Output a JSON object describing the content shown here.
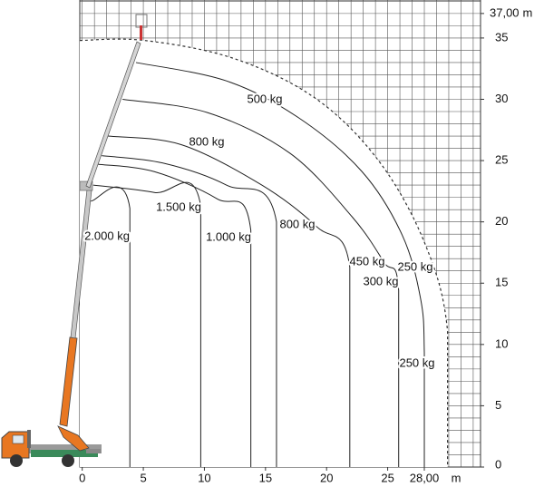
{
  "chart_data": {
    "type": "working-range",
    "xlim": [
      -0.2,
      32.6
    ],
    "ylim": [
      0,
      38.1
    ],
    "xticks": [
      0,
      5,
      10,
      15,
      20,
      25,
      {
        "value": 28,
        "label": "28,00"
      }
    ],
    "yticks": [
      0,
      5,
      10,
      15,
      20,
      25,
      30,
      35,
      {
        "value": 37,
        "label": "37,00"
      }
    ],
    "x_unit": "m",
    "y_unit": "m",
    "grid": true,
    "grid_step": 1,
    "envelope": {
      "x": [
        -0.2,
        5.1,
        12.5,
        19.2,
        24.4,
        28.1,
        29.9,
        29.9
      ],
      "y": [
        34.8,
        34.8,
        33.3,
        30.0,
        24.8,
        18.1,
        11.1,
        0
      ]
    },
    "curves": [
      {
        "x": [
          4.4,
          11.8,
          17.7,
          22.9,
          26.2,
          27.7,
          28.0,
          28.0
        ],
        "y": [
          33.0,
          31.5,
          28.5,
          24.1,
          18.9,
          13.7,
          9.3,
          0
        ]
      },
      {
        "x": [
          3.3,
          10.3,
          17.0,
          22.1,
          24.7,
          25.9,
          25.9
        ],
        "y": [
          30.0,
          28.9,
          25.6,
          20.4,
          16.7,
          14.4,
          0
        ]
      },
      {
        "x": [
          2.1,
          8.1,
          14.7,
          19.2,
          21.9,
          21.9
        ],
        "y": [
          27.0,
          26.3,
          23.0,
          19.6,
          16.3,
          0
        ]
      },
      {
        "x": [
          1.6,
          6.6,
          11.8,
          15.9,
          15.9
        ],
        "y": [
          25.4,
          24.8,
          23.0,
          20.0,
          0
        ]
      },
      {
        "x": [
          1.3,
          5.9,
          11.0,
          13.8,
          13.8
        ],
        "y": [
          24.7,
          24.1,
          21.9,
          19.3,
          0
        ]
      },
      {
        "x": [
          0.9,
          5.9,
          9.7,
          9.7
        ],
        "y": [
          23.0,
          22.4,
          21.3,
          0
        ]
      },
      {
        "x": [
          0.7,
          3.9,
          3.9
        ],
        "y": [
          21.7,
          21.1,
          0
        ]
      }
    ],
    "annotations": [
      "500 kg",
      "800 kg",
      "1.500 kg",
      "1.000 kg",
      "800 kg",
      "2.000 kg",
      "450 kg",
      "250 kg",
      "300 kg",
      "250 kg"
    ]
  }
}
